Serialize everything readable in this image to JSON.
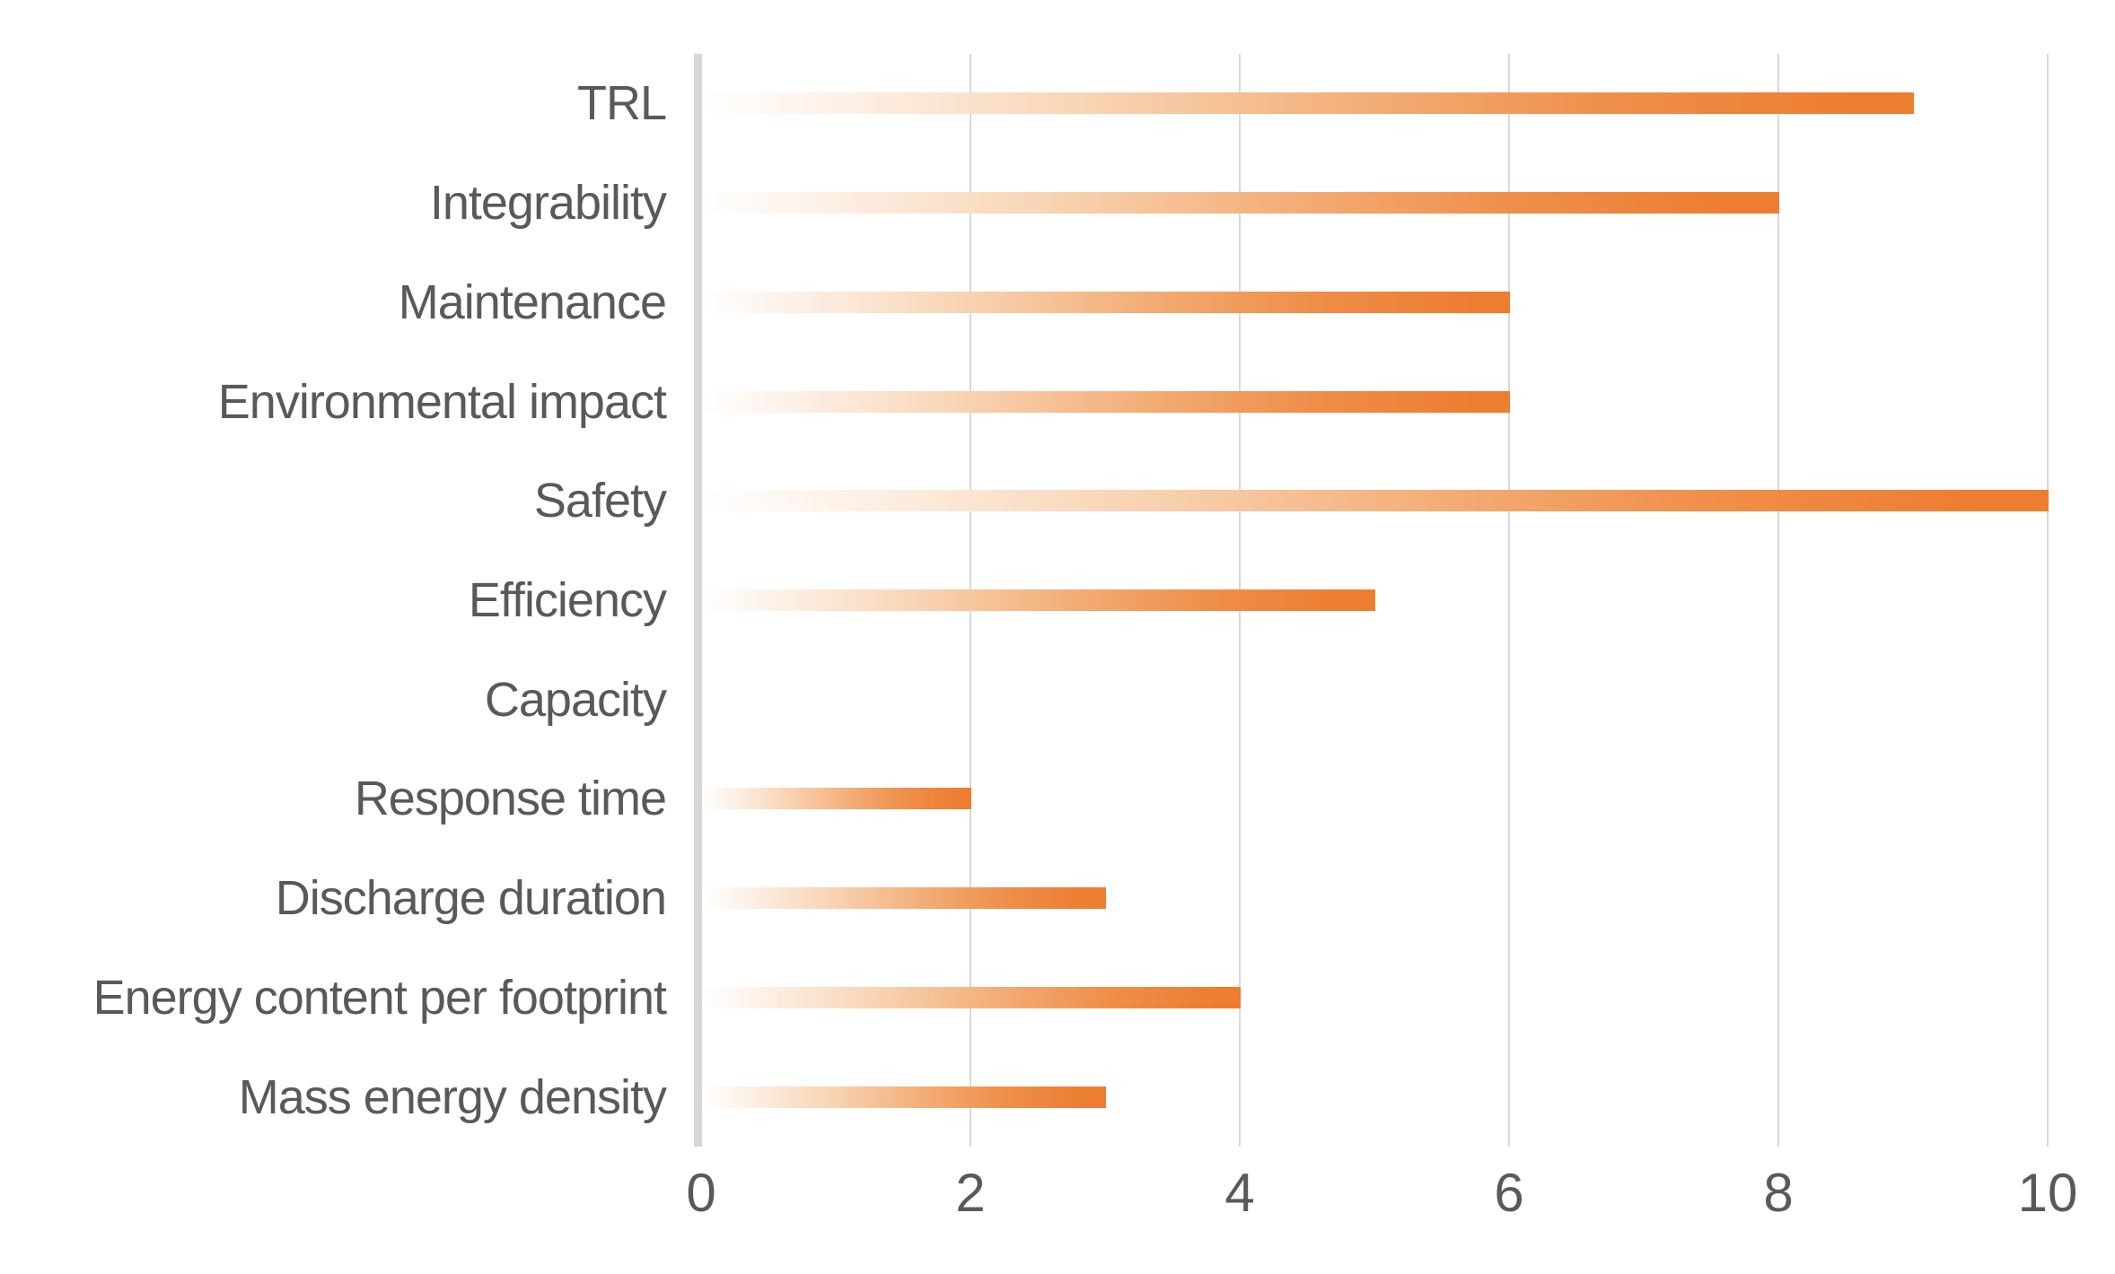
{
  "chart_data": {
    "type": "bar",
    "orientation": "horizontal",
    "title": "",
    "xlabel": "",
    "ylabel": "",
    "categories": [
      "TRL",
      "Integrability",
      "Maintenance",
      "Environmental impact",
      "Safety",
      "Efficiency",
      "Capacity",
      "Response time",
      "Discharge duration",
      "Energy content per footprint",
      "Mass energy density"
    ],
    "values": [
      9,
      8,
      6,
      6,
      10,
      5,
      0,
      2,
      3,
      4,
      3
    ],
    "xlim": [
      0,
      10
    ],
    "xticks": [
      0,
      2,
      4,
      6,
      8,
      10
    ],
    "grid": true,
    "legend": false,
    "colors": {
      "bar_fill_end": "#ed7d31",
      "bar_fill_start": "#ffffff",
      "gridline": "#d9d9d9",
      "axis_line": "#d6d6d6",
      "text": "#595959",
      "background": "#ffffff"
    }
  }
}
